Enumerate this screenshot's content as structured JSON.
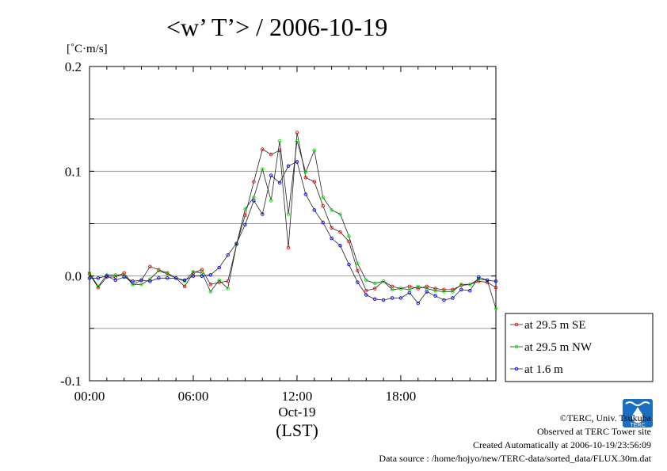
{
  "chart_data": {
    "type": "line",
    "title": "<w’ T’> / 2006-10-19",
    "ylabel": "[˚C·m/s]",
    "xlabel": "(LST)",
    "date_label": "Oct-19",
    "xlim": [
      0,
      23.5
    ],
    "ylim": [
      -0.1,
      0.2
    ],
    "x_ticks": [
      "00:00",
      "06:00",
      "12:00",
      "18:00"
    ],
    "y_ticks": [
      "-0.1",
      "0.0",
      "0.1",
      "0.2"
    ],
    "grid": true,
    "legend_position": "bottom-right outside",
    "x": [
      0,
      0.5,
      1,
      1.5,
      2,
      2.5,
      3,
      3.5,
      4,
      4.5,
      5,
      5.5,
      6,
      6.5,
      7,
      7.5,
      8,
      8.5,
      9,
      9.5,
      10,
      10.5,
      11,
      11.5,
      12,
      12.5,
      13,
      13.5,
      14,
      14.5,
      15,
      15.5,
      16,
      16.5,
      17,
      17.5,
      18,
      18.5,
      19,
      19.5,
      20,
      20.5,
      21,
      21.5,
      22,
      22.5,
      23,
      23.5
    ],
    "series": [
      {
        "name": "at 29.5 m SE",
        "color": "#ff0000",
        "values": [
          0.002,
          -0.011,
          -0.001,
          -0.001,
          0.003,
          -0.008,
          -0.004,
          0.009,
          0.006,
          0.003,
          -0.002,
          -0.01,
          0.003,
          0.006,
          -0.008,
          -0.006,
          -0.005,
          0.03,
          0.058,
          0.09,
          0.121,
          0.116,
          0.12,
          0.027,
          0.137,
          0.094,
          0.09,
          0.067,
          0.046,
          0.042,
          0.033,
          0.005,
          -0.014,
          -0.012,
          -0.005,
          -0.01,
          -0.012,
          -0.01,
          -0.012,
          -0.01,
          -0.012,
          -0.013,
          -0.013,
          -0.009,
          -0.008,
          -0.005,
          -0.006,
          -0.011
        ]
      },
      {
        "name": "at 29.5 m NW",
        "color": "#00ee00",
        "values": [
          0.003,
          -0.01,
          0.001,
          0.001,
          0.001,
          -0.008,
          -0.008,
          -0.003,
          0.005,
          0.002,
          -0.002,
          -0.005,
          0.004,
          0.003,
          -0.015,
          -0.004,
          -0.012,
          0.03,
          0.064,
          0.075,
          0.102,
          0.072,
          0.129,
          0.059,
          0.129,
          0.099,
          0.12,
          0.075,
          0.063,
          0.059,
          0.038,
          0.012,
          -0.004,
          -0.007,
          -0.005,
          -0.013,
          -0.012,
          -0.013,
          -0.01,
          -0.012,
          -0.014,
          -0.015,
          -0.015,
          -0.008,
          -0.008,
          -0.003,
          -0.004,
          -0.031
        ]
      },
      {
        "name": "at 1.6 m",
        "color": "#0000ff",
        "values": [
          -0.002,
          -0.002,
          0.0,
          -0.004,
          -0.001,
          -0.005,
          -0.004,
          -0.005,
          -0.002,
          -0.002,
          -0.002,
          -0.004,
          0.0,
          0.0,
          0.001,
          0.008,
          0.02,
          0.031,
          0.049,
          0.072,
          0.059,
          0.096,
          0.089,
          0.105,
          0.109,
          0.078,
          0.063,
          0.051,
          0.036,
          0.029,
          0.011,
          -0.006,
          -0.018,
          -0.022,
          -0.023,
          -0.021,
          -0.021,
          -0.016,
          -0.026,
          -0.015,
          -0.019,
          -0.023,
          -0.021,
          -0.013,
          -0.014,
          -0.001,
          -0.004,
          -0.005
        ]
      }
    ]
  },
  "footer": {
    "copyright": "©TERC, Univ. Tsukuba",
    "observed": "Observed at TERC Tower site",
    "created": "Created Automatically at 2006-10-19/23:56:09",
    "source": "Data source : /home/hojyo/new/TERC-data/sorted_data/FLUX.30m.dat"
  },
  "logo": {
    "text": "TERC",
    "color": "#1a6fc0"
  }
}
